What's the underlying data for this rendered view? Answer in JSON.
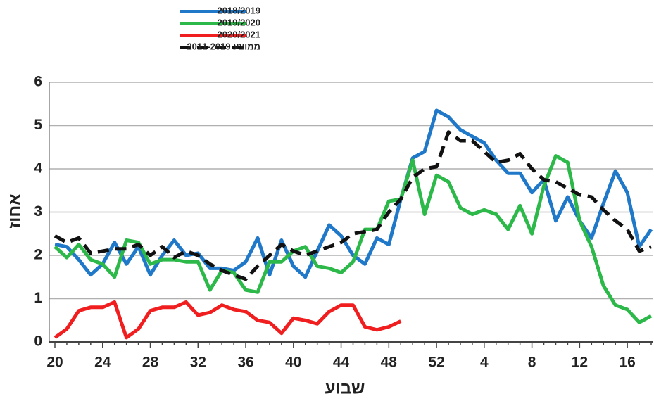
{
  "chart_data": {
    "type": "line",
    "x_label": "שבוע",
    "y_label": "אחוז",
    "categories": [
      "20",
      null,
      null,
      null,
      "24",
      null,
      null,
      null,
      "28",
      null,
      null,
      null,
      "32",
      null,
      null,
      null,
      "36",
      null,
      null,
      null,
      "40",
      null,
      null,
      null,
      "44",
      null,
      null,
      null,
      "48",
      null,
      null,
      null,
      "52",
      null,
      null,
      null,
      "4",
      null,
      null,
      null,
      "8",
      null,
      null,
      null,
      "12",
      null,
      null,
      null,
      "16",
      null,
      null
    ],
    "ylim": [
      0,
      6
    ],
    "yticks": [
      0,
      1,
      2,
      3,
      4,
      5,
      6
    ],
    "grid": true,
    "legend": "top",
    "series": [
      {
        "name": "2018/2019",
        "color": "#1f78c8",
        "dash": false,
        "values": [
          2.25,
          2.2,
          1.9,
          1.55,
          1.8,
          2.3,
          1.8,
          2.2,
          1.55,
          2.0,
          2.35,
          2.0,
          2.05,
          1.7,
          1.7,
          1.65,
          1.85,
          2.4,
          1.55,
          2.35,
          1.75,
          1.5,
          2.1,
          2.7,
          2.45,
          2.0,
          1.8,
          2.4,
          2.25,
          3.3,
          4.25,
          4.4,
          5.35,
          5.2,
          4.9,
          4.75,
          4.6,
          4.2,
          3.9,
          3.9,
          3.45,
          3.75,
          2.8,
          3.35,
          2.8,
          2.4,
          3.2,
          3.95,
          3.45,
          2.2,
          2.6
        ]
      },
      {
        "name": "2019/2020",
        "color": "#2db84a",
        "dash": false,
        "values": [
          2.2,
          1.95,
          2.25,
          1.9,
          1.8,
          1.5,
          2.35,
          2.3,
          1.8,
          1.9,
          1.9,
          1.85,
          1.85,
          1.2,
          1.65,
          1.6,
          1.2,
          1.15,
          1.85,
          1.85,
          2.1,
          2.2,
          1.75,
          1.7,
          1.6,
          1.85,
          2.6,
          2.6,
          3.25,
          3.3,
          4.2,
          2.95,
          3.85,
          3.7,
          3.1,
          2.95,
          3.05,
          2.95,
          2.6,
          3.15,
          2.5,
          3.6,
          4.3,
          4.15,
          2.8,
          2.2,
          1.3,
          0.85,
          0.75,
          0.45,
          0.6
        ]
      },
      {
        "name": "2020/2021",
        "color": "#f01e1e",
        "dash": false,
        "values": [
          0.1,
          0.3,
          0.72,
          0.8,
          0.8,
          0.92,
          0.1,
          0.3,
          0.72,
          0.8,
          0.8,
          0.92,
          0.62,
          0.68,
          0.85,
          0.75,
          0.7,
          0.5,
          0.45,
          0.2,
          0.55,
          0.5,
          0.42,
          0.7,
          0.85,
          0.85,
          0.35,
          0.28,
          0.35,
          0.48,
          null,
          null,
          null,
          null,
          null,
          null,
          null,
          null,
          null,
          null,
          null,
          null,
          null,
          null,
          null,
          null,
          null,
          null,
          null,
          null,
          null
        ]
      },
      {
        "name": "ממוצע 2011-2019",
        "color": "#111111",
        "dash": true,
        "values": [
          2.45,
          2.3,
          2.4,
          2.05,
          2.1,
          2.15,
          2.15,
          2.25,
          2.0,
          2.2,
          1.95,
          2.1,
          2.0,
          1.8,
          1.65,
          1.55,
          1.45,
          1.75,
          2.0,
          2.25,
          2.1,
          2.0,
          2.1,
          2.2,
          2.3,
          2.5,
          2.55,
          2.6,
          3.0,
          3.3,
          3.8,
          4.0,
          4.05,
          4.85,
          4.65,
          4.65,
          4.4,
          4.15,
          4.2,
          4.35,
          4.0,
          3.75,
          3.7,
          3.55,
          3.4,
          3.35,
          3.05,
          2.8,
          2.6,
          2.1,
          2.2
        ]
      }
    ]
  }
}
